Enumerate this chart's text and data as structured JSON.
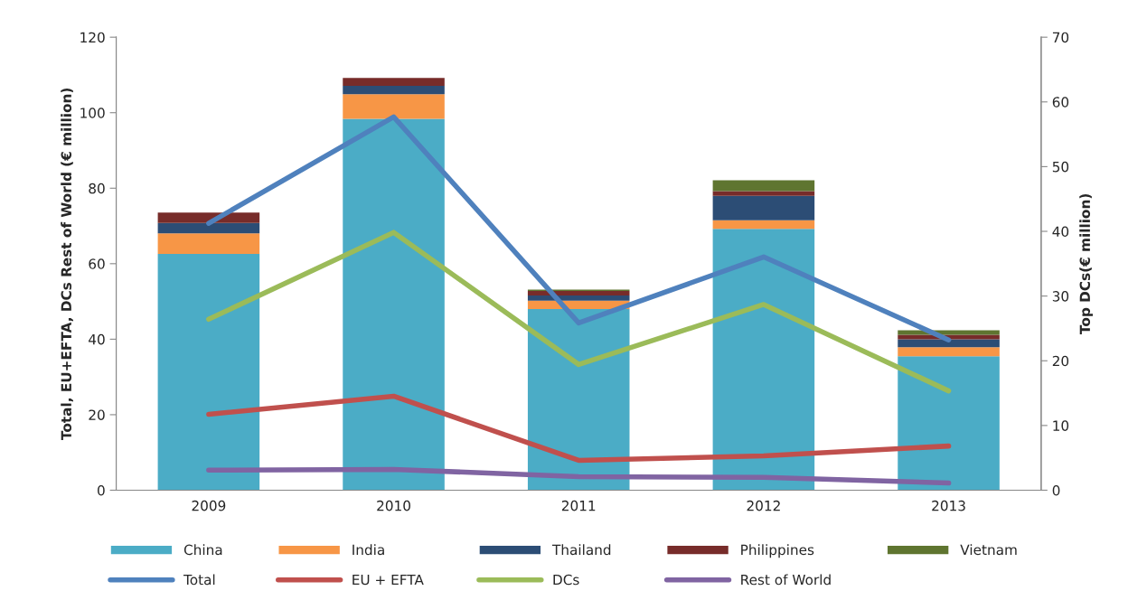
{
  "chart_data": {
    "type": "bar",
    "stacked": true,
    "categories": [
      "2009",
      "2010",
      "2011",
      "2012",
      "2013"
    ],
    "ylabel": "Total, EU+EFTA, DCs Rest of World (€ million)",
    "y2label": "Top DCs(€ million)",
    "ylim": [
      0,
      120
    ],
    "yticks": [
      0,
      20,
      40,
      60,
      80,
      100,
      120
    ],
    "y2lim": [
      0,
      70
    ],
    "y2ticks": [
      0,
      10,
      20,
      30,
      40,
      50,
      60,
      70
    ],
    "legend": "bottom",
    "grid": false,
    "series": [
      {
        "name": "China",
        "axis": "y2",
        "color": "#4bacc6",
        "values": [
          36.5,
          57.4,
          28.0,
          40.4,
          20.7
        ]
      },
      {
        "name": "India",
        "axis": "y2",
        "color": "#f79646",
        "values": [
          3.2,
          3.8,
          1.3,
          1.3,
          1.4
        ]
      },
      {
        "name": "Thailand",
        "axis": "y2",
        "color": "#2c4d75",
        "values": [
          1.6,
          1.3,
          0.8,
          3.8,
          1.2
        ]
      },
      {
        "name": "Philippines",
        "axis": "y2",
        "color": "#772c2a",
        "values": [
          1.6,
          1.2,
          0.7,
          0.7,
          0.7
        ]
      },
      {
        "name": "Vietnam",
        "axis": "y2",
        "color": "#5f7530",
        "values": [
          0,
          0,
          0.2,
          1.7,
          0.7
        ]
      },
      {
        "name": "Total",
        "type": "line",
        "color": "#4f81bd",
        "values": [
          70.7,
          98.9,
          44.3,
          61.8,
          39.8
        ]
      },
      {
        "name": "EU + EFTA",
        "type": "line",
        "color": "#c0504d",
        "values": [
          20.1,
          24.9,
          7.9,
          9.1,
          11.7
        ]
      },
      {
        "name": "DCs",
        "type": "line",
        "color": "#9bbb59",
        "values": [
          45.3,
          68.3,
          33.3,
          49.2,
          26.3
        ]
      },
      {
        "name": "Rest of World",
        "type": "line",
        "color": "#8064a2",
        "values": [
          5.3,
          5.5,
          3.6,
          3.4,
          1.9
        ]
      }
    ]
  }
}
